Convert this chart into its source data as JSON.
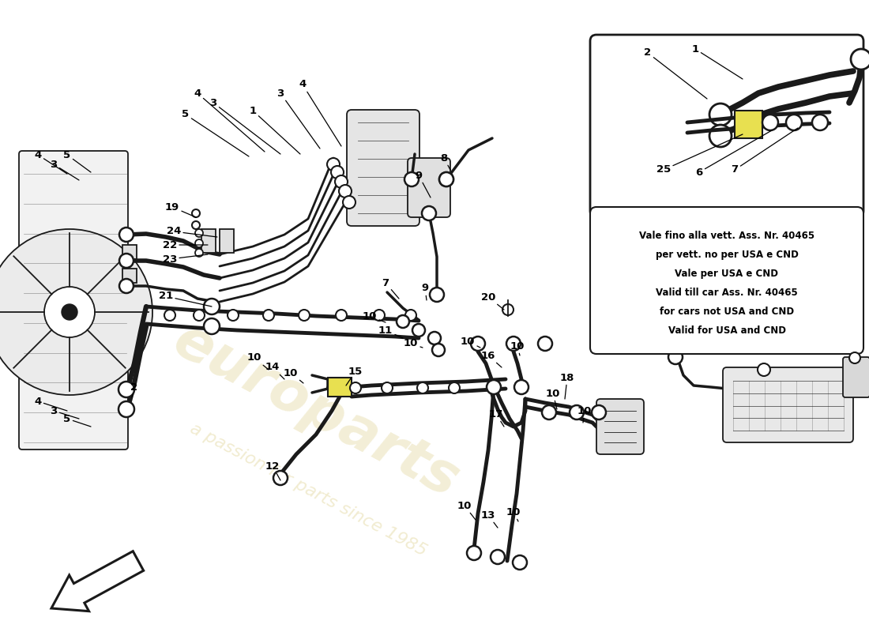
{
  "background_color": "#ffffff",
  "line_color": "#1a1a1a",
  "pipe_lw": 2.5,
  "thin_lw": 1.3,
  "note_text": [
    "Vale fino alla vett. Ass. Nr. 40465",
    "per vett. no per USA e CND",
    "Vale per USA e CND",
    "Valid till car Ass. Nr. 40465",
    "for cars not USA and CND",
    "Valid for USA and CND"
  ],
  "watermark_color": "#d8c87a",
  "yellow_accent": "#e8e050"
}
